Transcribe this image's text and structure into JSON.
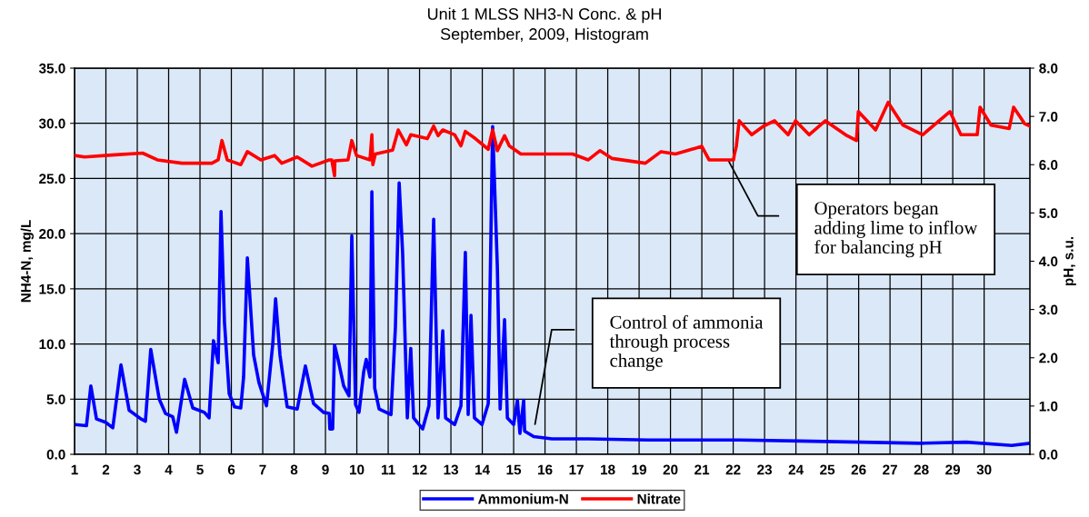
{
  "chart_data": {
    "type": "line",
    "title": "Unit 1 MLSS NH3-N Conc. & pH",
    "subtitle": "September, 2009, Histogram",
    "ylabel": "NH4-N, mg/L",
    "y2label": "pH, s.u.",
    "xlim": [
      1,
      31.46
    ],
    "xticks": [
      1,
      2,
      3,
      4,
      5,
      6,
      7,
      8,
      9,
      10,
      11,
      12,
      13,
      14,
      15,
      16,
      17,
      18,
      19,
      20,
      21,
      22,
      23,
      24,
      25,
      26,
      27,
      28,
      29,
      30
    ],
    "ylim": [
      0,
      35
    ],
    "yticks": [
      {
        "value": 0,
        "label": "0.0"
      },
      {
        "value": 5,
        "label": "5.0"
      },
      {
        "value": 10,
        "label": "10.0"
      },
      {
        "value": 15,
        "label": "15.0"
      },
      {
        "value": 20,
        "label": "20.0"
      },
      {
        "value": 25,
        "label": "25.0"
      },
      {
        "value": 30,
        "label": "30.0"
      },
      {
        "value": 35,
        "label": "35.0"
      }
    ],
    "y2lim": [
      0,
      8
    ],
    "y2ticks": [
      {
        "value": 0,
        "label": "0.0"
      },
      {
        "value": 1,
        "label": "1.0"
      },
      {
        "value": 2,
        "label": "2.0"
      },
      {
        "value": 3,
        "label": "3.0"
      },
      {
        "value": 4,
        "label": "4.0"
      },
      {
        "value": 5,
        "label": "5.0"
      },
      {
        "value": 6,
        "label": "6.0"
      },
      {
        "value": 7,
        "label": "7.0"
      },
      {
        "value": 8,
        "label": "8.0"
      }
    ],
    "grid": true,
    "legend": "bottom",
    "marker": "none",
    "line_style": "solid",
    "series": [
      {
        "name": "Ammonium-N",
        "color": "#0000ff",
        "x": [
          1.0,
          1.38,
          1.52,
          1.7,
          1.99,
          2.22,
          2.48,
          2.74,
          3.12,
          3.26,
          3.43,
          3.7,
          3.9,
          4.13,
          4.25,
          4.51,
          4.77,
          5.14,
          5.29,
          5.43,
          5.58,
          5.67,
          5.78,
          5.93,
          6.1,
          6.3,
          6.39,
          6.51,
          6.71,
          6.88,
          7.12,
          7.32,
          7.41,
          7.55,
          7.78,
          8.1,
          8.36,
          8.62,
          8.94,
          9.12,
          9.14,
          9.23,
          9.29,
          9.41,
          9.58,
          9.75,
          9.84,
          9.96,
          10.07,
          10.22,
          10.3,
          10.42,
          10.48,
          10.57,
          10.71,
          11.09,
          11.23,
          11.35,
          11.46,
          11.61,
          11.72,
          11.81,
          12.1,
          12.3,
          12.45,
          12.59,
          12.74,
          12.83,
          13.12,
          13.32,
          13.46,
          13.55,
          13.64,
          13.75,
          13.99,
          14.19,
          14.33,
          14.48,
          14.57,
          14.71,
          14.8,
          15.0,
          15.12,
          15.2,
          15.32,
          15.35,
          15.64,
          16.22,
          17.38,
          19.29,
          21.72,
          22.19,
          24.13,
          26.07,
          27.99,
          29.43,
          30.88,
          31.46
        ],
        "values": [
          2.7,
          2.6,
          6.2,
          3.2,
          2.9,
          2.4,
          8.1,
          4.0,
          3.2,
          3.0,
          9.5,
          5.0,
          3.7,
          3.4,
          2.0,
          6.8,
          4.2,
          3.8,
          3.3,
          10.3,
          8.3,
          22.0,
          12.0,
          5.5,
          4.3,
          4.2,
          7.0,
          17.8,
          9.0,
          6.5,
          4.4,
          10.0,
          14.1,
          9.0,
          4.3,
          4.1,
          8.0,
          4.6,
          3.8,
          3.7,
          2.3,
          2.3,
          9.9,
          8.5,
          6.2,
          5.3,
          19.8,
          4.5,
          3.8,
          7.5,
          8.6,
          7.0,
          23.8,
          6.0,
          4.1,
          3.6,
          11.5,
          24.6,
          18.3,
          3.3,
          9.6,
          3.3,
          2.3,
          4.4,
          21.3,
          3.3,
          11.2,
          3.3,
          2.7,
          4.4,
          18.3,
          3.6,
          12.6,
          3.3,
          2.7,
          4.6,
          29.7,
          17.0,
          4.1,
          12.2,
          3.3,
          2.7,
          4.9,
          1.9,
          4.9,
          2.1,
          1.6,
          1.4,
          1.4,
          1.3,
          1.3,
          1.3,
          1.2,
          1.1,
          1.0,
          1.1,
          0.8,
          1.0
        ]
      },
      {
        "name": "Nitrate",
        "color": "#ff0000",
        "axis": "y2",
        "x": [
          1.0,
          1.32,
          2.19,
          3.17,
          3.64,
          4.42,
          5.38,
          5.58,
          5.7,
          5.87,
          6.3,
          6.51,
          6.94,
          7.38,
          7.61,
          8.1,
          8.57,
          9.12,
          9.2,
          9.29,
          9.3,
          9.72,
          9.84,
          9.99,
          10.42,
          10.48,
          10.51,
          10.59,
          11.14,
          11.32,
          11.58,
          11.72,
          12.25,
          12.45,
          12.59,
          12.74,
          13.12,
          13.32,
          13.46,
          13.78,
          14.19,
          14.33,
          14.48,
          14.71,
          14.86,
          15.23,
          16.88,
          17.38,
          17.75,
          18.13,
          19.2,
          19.7,
          20.16,
          21.0,
          21.23,
          22.01,
          22.04,
          22.1,
          22.19,
          22.59,
          22.97,
          23.32,
          23.75,
          23.99,
          24.42,
          24.94,
          25.58,
          25.93,
          25.99,
          26.54,
          26.94,
          27.41,
          28.04,
          28.91,
          29.26,
          29.78,
          29.87,
          30.22,
          30.8,
          30.94,
          31.29,
          31.46
        ],
        "values": [
          6.19,
          6.16,
          6.2,
          6.24,
          6.1,
          6.03,
          6.03,
          6.1,
          6.5,
          6.1,
          6.0,
          6.27,
          6.1,
          6.19,
          6.03,
          6.16,
          5.97,
          6.1,
          6.1,
          5.77,
          6.08,
          6.1,
          6.5,
          6.19,
          6.1,
          6.62,
          6.0,
          6.22,
          6.3,
          6.72,
          6.41,
          6.62,
          6.54,
          6.8,
          6.6,
          6.72,
          6.62,
          6.39,
          6.69,
          6.54,
          6.32,
          6.72,
          6.29,
          6.6,
          6.39,
          6.22,
          6.22,
          6.1,
          6.29,
          6.13,
          6.03,
          6.27,
          6.22,
          6.38,
          6.1,
          6.1,
          6.22,
          6.38,
          6.91,
          6.62,
          6.8,
          6.91,
          6.62,
          6.91,
          6.62,
          6.91,
          6.62,
          6.5,
          7.1,
          6.72,
          7.29,
          6.82,
          6.62,
          7.1,
          6.62,
          6.62,
          7.19,
          6.82,
          6.75,
          7.19,
          6.85,
          6.8
        ]
      }
    ],
    "annotations": [
      "Control of ammonia\nthrough process\nchange",
      "Operators began\nadding lime to inflow\nfor balancing pH"
    ]
  }
}
